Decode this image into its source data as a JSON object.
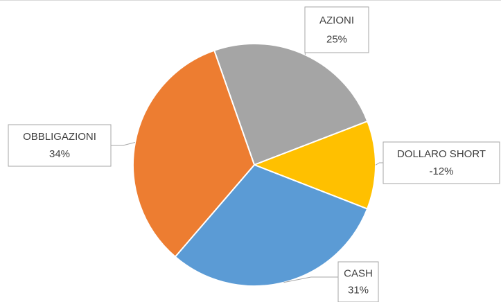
{
  "chart_data": {
    "type": "pie",
    "categories": [
      "AZIONI",
      "DOLLARO SHORT",
      "CASH",
      "OBBLIGAZIONI"
    ],
    "values": [
      25,
      -12,
      31,
      34
    ],
    "value_labels": [
      "25%",
      "-12%",
      "31%",
      "34%"
    ],
    "colors": [
      "#a5a5a5",
      "#ffc000",
      "#5b9bd5",
      "#ed7d31"
    ]
  }
}
